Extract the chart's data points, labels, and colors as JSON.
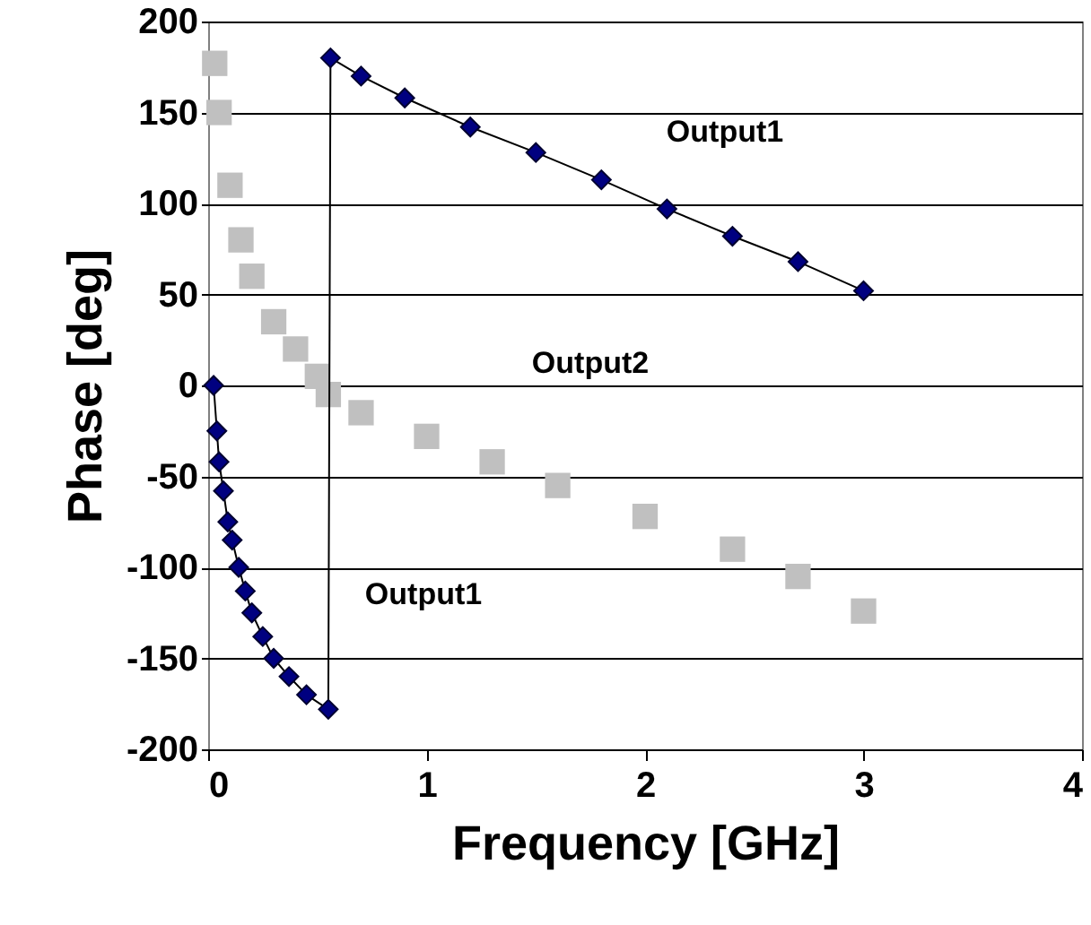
{
  "chart_data": {
    "type": "line",
    "xlabel": "Frequency [GHz]",
    "ylabel": "Phase [deg]",
    "xlim": [
      0,
      4
    ],
    "xticks": [
      0,
      1,
      2,
      3,
      4
    ],
    "ylim": [
      -200,
      200
    ],
    "yticks": [
      -200,
      -150,
      -100,
      -50,
      0,
      50,
      100,
      150,
      200
    ],
    "grid": "y",
    "series": [
      {
        "type": "scatter",
        "marker": "square",
        "color": "#c0c0c0",
        "x": [
          0.03,
          0.05,
          0.1,
          0.15,
          0.2,
          0.3,
          0.4,
          0.5,
          0.55,
          0.7,
          1.0,
          1.3,
          1.6,
          2.0,
          2.4,
          2.7,
          3.0
        ],
        "values": [
          177,
          150,
          110,
          80,
          60,
          35,
          20,
          5,
          -5,
          -15,
          -28,
          -42,
          -55,
          -72,
          -90,
          -105,
          -124
        ]
      },
      {
        "marker": "diamond",
        "color": "#000080",
        "x": [
          0.025,
          0.04,
          0.05,
          0.07,
          0.09,
          0.11,
          0.14,
          0.17,
          0.2,
          0.25,
          0.3,
          0.37,
          0.45,
          0.55,
          0.56,
          0.7,
          0.9,
          1.2,
          1.5,
          1.8,
          2.1,
          2.4,
          2.7,
          3.0
        ],
        "values": [
          0,
          -25,
          -42,
          -58,
          -75,
          -85,
          -100,
          -113,
          -125,
          -138,
          -150,
          -160,
          -170,
          -178,
          180,
          170,
          158,
          142,
          128,
          113,
          97,
          82,
          68,
          52
        ]
      }
    ],
    "annotations": [
      "Output1",
      "Output2",
      "Output1"
    ]
  }
}
